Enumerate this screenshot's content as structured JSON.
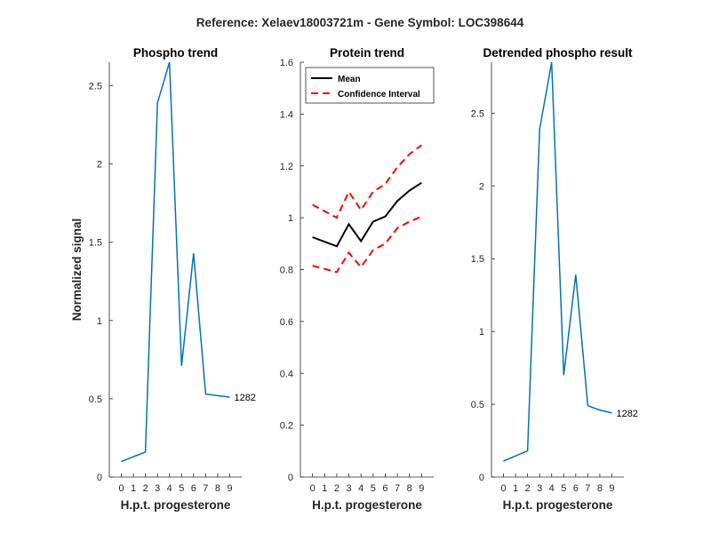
{
  "figure_title": "Reference:  Xelaev18003721m - Gene Symbol:  LOC398644",
  "chart_data": [
    {
      "type": "line",
      "title": "Phospho trend",
      "xlabel": "H.p.t. progesterone",
      "ylabel": "Normalized signal",
      "x": [
        0,
        2,
        3,
        4,
        5,
        6,
        7,
        8,
        9
      ],
      "xticks": [
        0,
        1,
        2,
        3,
        4,
        5,
        6,
        7,
        8,
        9
      ],
      "ylim": [
        0,
        2.65
      ],
      "yticks": [
        0,
        0.5,
        1,
        1.5,
        2,
        2.5
      ],
      "series": [
        {
          "values": [
            0.1,
            0.16,
            2.39,
            2.65,
            0.71,
            1.43,
            0.53,
            0.52,
            0.51
          ],
          "color": "#0072BD",
          "style": "solid"
        }
      ],
      "annotation": "1282"
    },
    {
      "type": "line",
      "title": "Protein trend",
      "xlabel": "H.p.t. progesterone",
      "ylabel": "",
      "x": [
        0,
        2,
        3,
        4,
        5,
        6,
        7,
        8,
        9
      ],
      "xticks": [
        0,
        1,
        2,
        3,
        4,
        5,
        6,
        7,
        8,
        9
      ],
      "ylim": [
        0,
        1.6
      ],
      "yticks": [
        0,
        0.2,
        0.4,
        0.6,
        0.8,
        1,
        1.2,
        1.4,
        1.6
      ],
      "series": [
        {
          "name": "Mean",
          "values": [
            0.925,
            0.89,
            0.975,
            0.91,
            0.985,
            1.005,
            1.065,
            1.105,
            1.135
          ],
          "color": "#000000",
          "style": "solid"
        },
        {
          "name": "Confidence Interval",
          "values": [
            1.05,
            1.0,
            1.1,
            1.03,
            1.1,
            1.13,
            1.195,
            1.245,
            1.28
          ],
          "color": "#ff0000",
          "style": "dashed"
        },
        {
          "values": [
            0.815,
            0.79,
            0.865,
            0.81,
            0.875,
            0.9,
            0.96,
            0.985,
            1.005
          ],
          "color": "#ff0000",
          "style": "dashed"
        }
      ],
      "legend": {
        "position": "top-left",
        "entries": [
          "Mean",
          "Confidence Interval"
        ]
      }
    },
    {
      "type": "line",
      "title": "Detrended phospho result",
      "xlabel": "H.p.t. progesterone",
      "ylabel": "",
      "x": [
        0,
        2,
        3,
        4,
        5,
        6,
        7,
        8,
        9
      ],
      "xticks": [
        0,
        1,
        2,
        3,
        4,
        5,
        6,
        7,
        8,
        9
      ],
      "ylim": [
        0,
        2.85
      ],
      "yticks": [
        0,
        0.5,
        1,
        1.5,
        2,
        2.5
      ],
      "series": [
        {
          "values": [
            0.11,
            0.18,
            2.39,
            2.85,
            0.7,
            1.39,
            0.49,
            0.46,
            0.44
          ],
          "color": "#0072BD",
          "style": "solid"
        }
      ],
      "annotation": "1282"
    }
  ]
}
